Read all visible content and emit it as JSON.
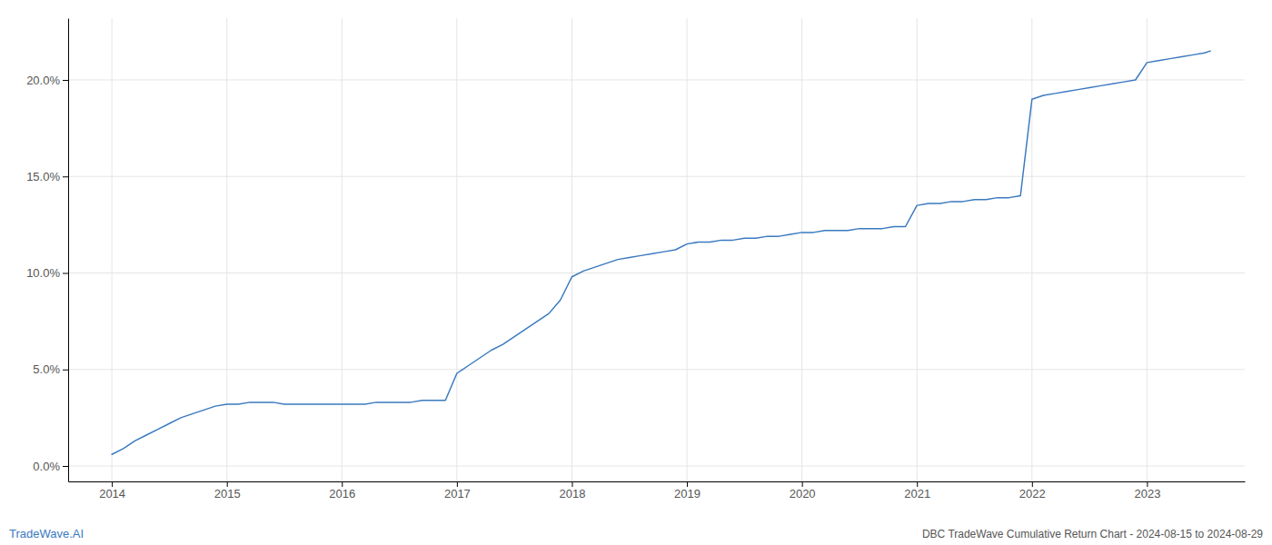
{
  "chart_data": {
    "type": "line",
    "title": "DBC TradeWave Cumulative Return Chart - 2024-08-15 to 2024-08-29",
    "annotations": [
      "TradeWave.AI"
    ],
    "color": "#3a7abf",
    "x": [
      2014.0,
      2014.1,
      2014.2,
      2014.3,
      2014.4,
      2014.5,
      2014.6,
      2014.7,
      2014.8,
      2014.9,
      2015.0,
      2015.1,
      2015.2,
      2015.3,
      2015.4,
      2015.5,
      2015.6,
      2015.7,
      2015.8,
      2015.9,
      2016.0,
      2016.1,
      2016.2,
      2016.3,
      2016.4,
      2016.5,
      2016.6,
      2016.7,
      2016.8,
      2016.9,
      2017.0,
      2017.1,
      2017.2,
      2017.3,
      2017.4,
      2017.5,
      2017.6,
      2017.7,
      2017.8,
      2017.9,
      2018.0,
      2018.1,
      2018.2,
      2018.3,
      2018.4,
      2018.5,
      2018.6,
      2018.7,
      2018.8,
      2018.9,
      2019.0,
      2019.1,
      2019.2,
      2019.3,
      2019.4,
      2019.5,
      2019.6,
      2019.7,
      2019.8,
      2019.9,
      2020.0,
      2020.1,
      2020.2,
      2020.3,
      2020.4,
      2020.5,
      2020.6,
      2020.7,
      2020.8,
      2020.9,
      2021.0,
      2021.1,
      2021.2,
      2021.3,
      2021.4,
      2021.5,
      2021.6,
      2021.7,
      2021.8,
      2021.9,
      2022.0,
      2022.1,
      2022.2,
      2022.3,
      2022.4,
      2022.5,
      2022.6,
      2022.7,
      2022.8,
      2022.9,
      2023.0,
      2023.1,
      2023.2,
      2023.3,
      2023.4,
      2023.5,
      2023.55
    ],
    "values": [
      0.006,
      0.009,
      0.013,
      0.016,
      0.019,
      0.022,
      0.025,
      0.027,
      0.029,
      0.031,
      0.032,
      0.032,
      0.033,
      0.033,
      0.033,
      0.032,
      0.032,
      0.032,
      0.032,
      0.032,
      0.032,
      0.032,
      0.032,
      0.033,
      0.033,
      0.033,
      0.033,
      0.034,
      0.034,
      0.034,
      0.048,
      0.052,
      0.056,
      0.06,
      0.063,
      0.067,
      0.071,
      0.075,
      0.079,
      0.086,
      0.098,
      0.101,
      0.103,
      0.105,
      0.107,
      0.108,
      0.109,
      0.11,
      0.111,
      0.112,
      0.115,
      0.116,
      0.116,
      0.117,
      0.117,
      0.118,
      0.118,
      0.119,
      0.119,
      0.12,
      0.121,
      0.121,
      0.122,
      0.122,
      0.122,
      0.123,
      0.123,
      0.123,
      0.124,
      0.124,
      0.135,
      0.136,
      0.136,
      0.137,
      0.137,
      0.138,
      0.138,
      0.139,
      0.139,
      0.14,
      0.19,
      0.192,
      0.193,
      0.194,
      0.195,
      0.196,
      0.197,
      0.198,
      0.199,
      0.2,
      0.209,
      0.21,
      0.211,
      0.212,
      0.213,
      0.214,
      0.215
    ],
    "xlim": [
      2013.62,
      2023.85
    ],
    "ylim": [
      -0.008,
      0.232
    ],
    "xticks": [
      2014,
      2015,
      2016,
      2017,
      2018,
      2019,
      2020,
      2021,
      2022,
      2023
    ],
    "yticks": [
      {
        "value": 0.0,
        "label": "0.0%"
      },
      {
        "value": 0.05,
        "label": "5.0%"
      },
      {
        "value": 0.1,
        "label": "10.0%"
      },
      {
        "value": 0.15,
        "label": "15.0%"
      },
      {
        "value": 0.2,
        "label": "20.0%"
      }
    ],
    "grid": true
  }
}
